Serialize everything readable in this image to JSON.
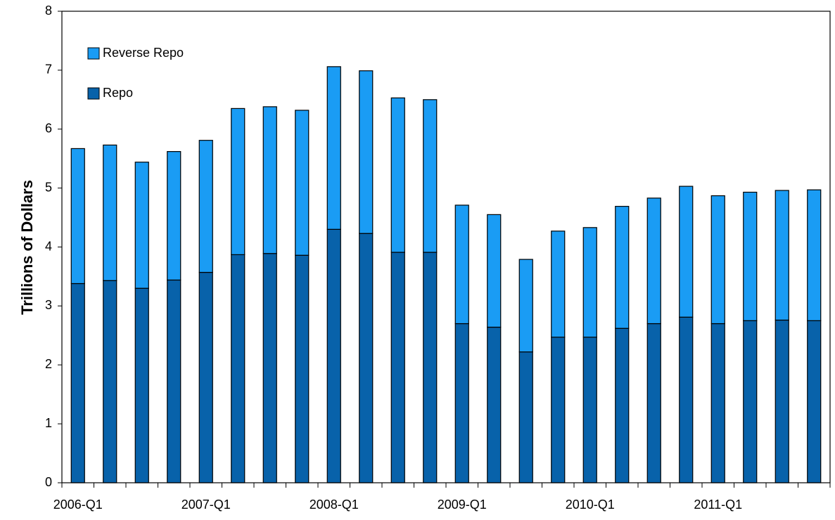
{
  "chart_data": {
    "type": "stacked_bar",
    "ylabel": "Trillions of Dollars",
    "categories": [
      "2006-Q1",
      null,
      null,
      null,
      "2007-Q1",
      null,
      null,
      null,
      "2008-Q1",
      null,
      null,
      null,
      "2009-Q1",
      null,
      null,
      null,
      "2010-Q1",
      null,
      null,
      null,
      "2011-Q1",
      null,
      null,
      null
    ],
    "series": [
      {
        "name": "Repo",
        "color": "#0862aa",
        "values": [
          3.38,
          3.43,
          3.3,
          3.44,
          3.57,
          3.87,
          3.89,
          3.86,
          4.3,
          4.23,
          3.91,
          3.91,
          2.7,
          2.64,
          2.22,
          2.47,
          2.47,
          2.62,
          2.7,
          2.81,
          2.7,
          2.75,
          2.76,
          2.75
        ]
      },
      {
        "name": "Reverse Repo",
        "color": "#1a9cf4",
        "values": [
          2.29,
          2.3,
          2.14,
          2.18,
          2.24,
          2.48,
          2.49,
          2.46,
          2.76,
          2.76,
          2.62,
          2.59,
          2.01,
          1.91,
          1.57,
          1.8,
          1.86,
          2.07,
          2.13,
          2.22,
          2.17,
          2.18,
          2.2,
          2.22
        ]
      }
    ],
    "ylim": [
      0,
      8
    ],
    "yticks": [
      0,
      1,
      2,
      3,
      4,
      5,
      6,
      7,
      8
    ],
    "grid": false,
    "legend": "upper left"
  }
}
